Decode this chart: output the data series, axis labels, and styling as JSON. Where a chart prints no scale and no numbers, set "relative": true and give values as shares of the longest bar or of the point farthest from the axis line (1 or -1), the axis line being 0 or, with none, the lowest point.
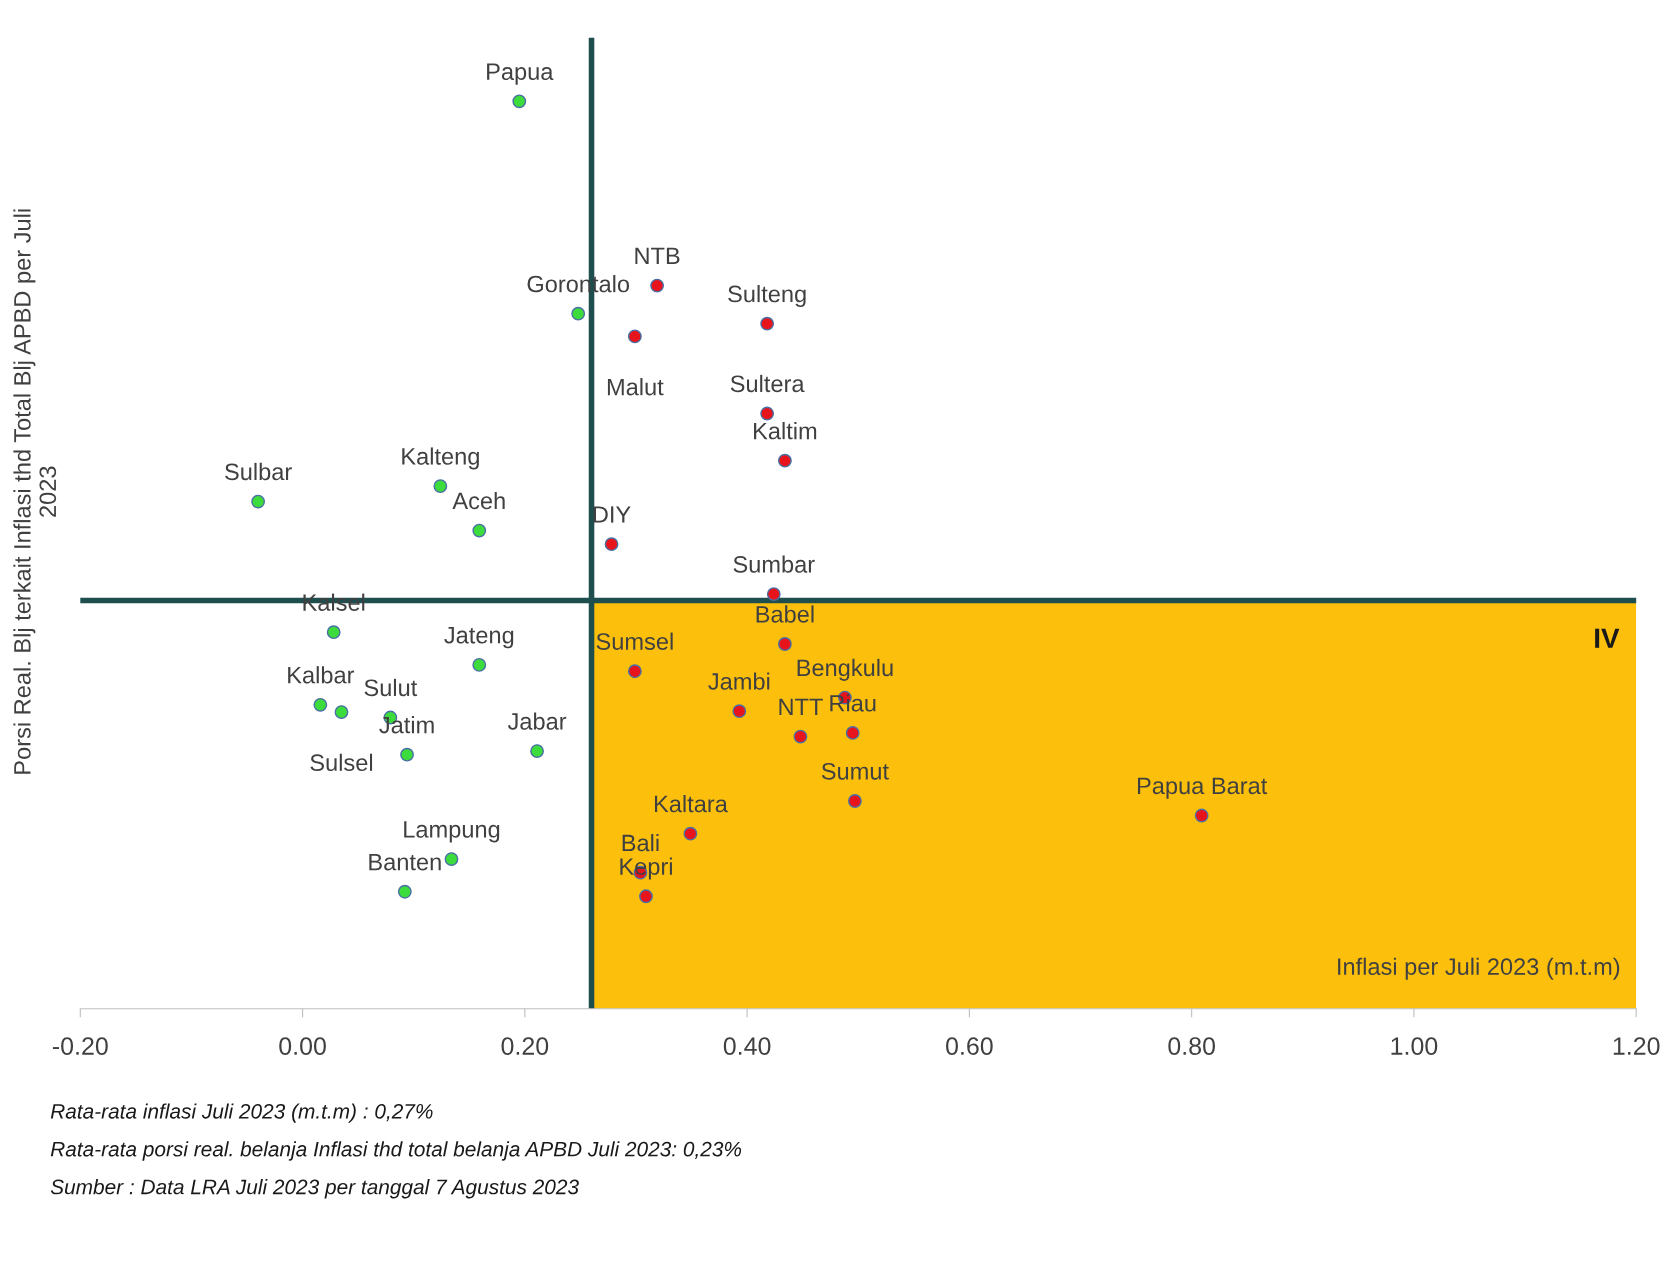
{
  "chart_data": {
    "type": "scatter",
    "relative": true,
    "xlabel": "Inflasi per Juli 2023 (m.t.m)",
    "ylabel": "Porsi Real. Blj terkait Inflasi thd Total Blj APBD per Juli 2023",
    "xlim": [
      -0.2,
      1.2
    ],
    "xticks": [
      {
        "value": -0.2,
        "label": "-0.20"
      },
      {
        "value": 0,
        "label": "0.00"
      },
      {
        "value": 0.2,
        "label": "0.20"
      },
      {
        "value": 0.4,
        "label": "0.40"
      },
      {
        "value": 0.6,
        "label": "0.60"
      },
      {
        "value": 0.8,
        "label": "0.80"
      },
      {
        "value": 1.0,
        "label": "1.00"
      },
      {
        "value": 1.2,
        "label": "1.20"
      }
    ],
    "grid": false,
    "legend": false,
    "marker": "circle",
    "series": [
      {
        "color": "#3ddc3d",
        "x": [
          0.195,
          0.248,
          -0.04,
          0.124,
          0.159,
          0.028,
          0.159,
          0.016,
          0.035,
          0.079,
          0.094,
          0.211,
          0.134,
          0.092
        ],
        "values": [
          1.0,
          0.766,
          0.559,
          0.576,
          0.527,
          0.415,
          0.379,
          0.335,
          0.327,
          0.321,
          0.28,
          0.284,
          0.165,
          0.129
        ]
      },
      {
        "color": "#e8141b",
        "x": [
          0.319,
          0.299,
          0.418,
          0.418,
          0.434,
          0.278,
          0.424,
          0.434,
          0.299,
          0.393,
          0.488,
          0.448,
          0.495,
          0.497,
          0.809,
          0.349,
          0.304,
          0.309
        ],
        "values": [
          0.797,
          0.741,
          0.755,
          0.656,
          0.604,
          0.512,
          0.457,
          0.402,
          0.372,
          0.328,
          0.343,
          0.3,
          0.304,
          0.229,
          0.213,
          0.193,
          0.15,
          0.124
        ]
      }
    ],
    "ref_lines": [
      {
        "axis": "x",
        "value": 0.26,
        "color": "#1f4e4f"
      },
      {
        "axis": "y",
        "value": 0.45,
        "color": "#1f4e4f"
      }
    ],
    "bands": [
      {
        "axis": "x",
        "from": 0.26,
        "to": 1.2,
        "label": "IV",
        "color": "#fcc00c"
      }
    ],
    "annotations": [
      {
        "text": "Papua",
        "x": 0.195,
        "y": 1.0
      },
      {
        "text": "Gorontalo",
        "x": 0.248,
        "y": 0.766
      },
      {
        "text": "Sulbar",
        "x": -0.04,
        "y": 0.559
      },
      {
        "text": "Kalteng",
        "x": 0.124,
        "y": 0.576
      },
      {
        "text": "Aceh",
        "x": 0.159,
        "y": 0.527
      },
      {
        "text": "Kalsel",
        "x": 0.028,
        "y": 0.415
      },
      {
        "text": "Jateng",
        "x": 0.159,
        "y": 0.379
      },
      {
        "text": "Kalbar",
        "x": 0.016,
        "y": 0.335
      },
      {
        "text": "Sulsel",
        "x": 0.035,
        "y": 0.327
      },
      {
        "text": "Sulut",
        "x": 0.079,
        "y": 0.321
      },
      {
        "text": "Jatim",
        "x": 0.094,
        "y": 0.28
      },
      {
        "text": "Jabar",
        "x": 0.211,
        "y": 0.284
      },
      {
        "text": "Lampung",
        "x": 0.134,
        "y": 0.165
      },
      {
        "text": "Banten",
        "x": 0.092,
        "y": 0.129
      },
      {
        "text": "NTB",
        "x": 0.319,
        "y": 0.797
      },
      {
        "text": "Malut",
        "x": 0.299,
        "y": 0.741
      },
      {
        "text": "Sulteng",
        "x": 0.418,
        "y": 0.755
      },
      {
        "text": "Sultera",
        "x": 0.418,
        "y": 0.656
      },
      {
        "text": "Kaltim",
        "x": 0.434,
        "y": 0.604
      },
      {
        "text": "DIY",
        "x": 0.278,
        "y": 0.512
      },
      {
        "text": "Sumbar",
        "x": 0.424,
        "y": 0.457
      },
      {
        "text": "Babel",
        "x": 0.434,
        "y": 0.402
      },
      {
        "text": "Sumsel",
        "x": 0.299,
        "y": 0.372
      },
      {
        "text": "Jambi",
        "x": 0.393,
        "y": 0.328
      },
      {
        "text": "Bengkulu",
        "x": 0.488,
        "y": 0.343
      },
      {
        "text": "NTT",
        "x": 0.448,
        "y": 0.3
      },
      {
        "text": "Riau",
        "x": 0.495,
        "y": 0.304
      },
      {
        "text": "Sumut",
        "x": 0.497,
        "y": 0.229
      },
      {
        "text": "Papua Barat",
        "x": 0.809,
        "y": 0.213
      },
      {
        "text": "Kaltara",
        "x": 0.349,
        "y": 0.193
      },
      {
        "text": "Bali",
        "x": 0.304,
        "y": 0.15
      },
      {
        "text": "Kepri",
        "x": 0.309,
        "y": 0.124
      },
      "Rata-rata inflasi Juli 2023 (m.t.m) : 0,27%",
      "Rata-rata porsi real. belanja Inflasi thd total belanja APBD Juli 2023: 0,23%",
      "Sumber : Data LRA Juli 2023 per tanggal 7 Agustus 2023"
    ]
  }
}
